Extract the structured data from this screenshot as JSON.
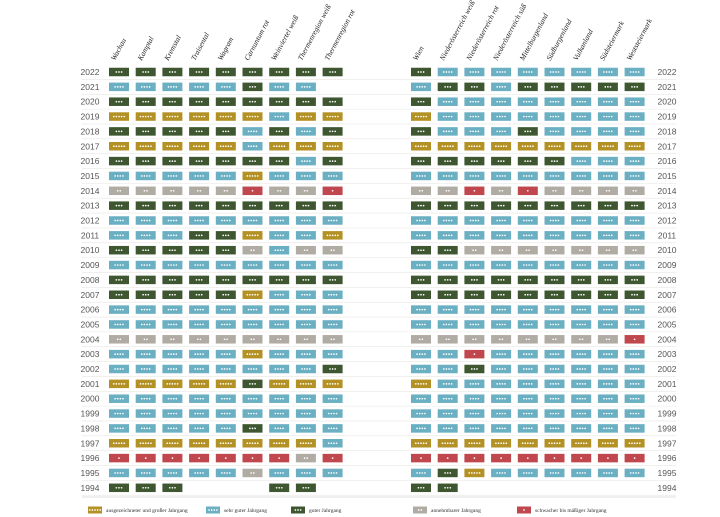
{
  "chart_data": {
    "type": "heatmap",
    "years": [
      2022,
      2021,
      2020,
      2019,
      2018,
      2017,
      2016,
      2015,
      2014,
      2013,
      2012,
      2011,
      2010,
      2009,
      2008,
      2007,
      2006,
      2005,
      2004,
      2003,
      2002,
      2001,
      2000,
      1999,
      1998,
      1997,
      1996,
      1995,
      1994
    ],
    "colors": {
      "5": "#b49125",
      "4": "#6aafc2",
      "3": "#3e5731",
      "2": "#b0aca4",
      "1": "#c0474e"
    },
    "legend": [
      {
        "level": 5,
        "label": "ausgezeichneter und großer Jahrgang"
      },
      {
        "level": 4,
        "label": "sehr guter Jahrgang"
      },
      {
        "level": 3,
        "label": "guter Jahrgang"
      },
      {
        "level": 2,
        "label": "annehmbarer Jahrgang"
      },
      {
        "level": 1,
        "label": "schwacher bis mäßiger Jahrgang"
      }
    ],
    "groups": [
      {
        "columns": [
          "Wachau",
          "Kamptal",
          "Kremstal",
          "Traisental",
          "Wagram",
          "Carnuntum rot",
          "Weinviertel weiß",
          "Thermenregion weiß",
          "Thermenregion rot"
        ],
        "rows": [
          [
            3,
            3,
            3,
            3,
            3,
            3,
            3,
            3,
            3
          ],
          [
            4,
            4,
            4,
            4,
            4,
            3,
            4,
            4,
            null
          ],
          [
            3,
            3,
            3,
            3,
            3,
            3,
            3,
            3,
            3
          ],
          [
            5,
            5,
            5,
            5,
            5,
            5,
            4,
            5,
            5
          ],
          [
            3,
            3,
            3,
            3,
            3,
            4,
            3,
            4,
            3
          ],
          [
            5,
            5,
            5,
            5,
            5,
            4,
            5,
            5,
            5
          ],
          [
            3,
            3,
            3,
            3,
            3,
            3,
            3,
            4,
            3
          ],
          [
            4,
            4,
            4,
            4,
            4,
            5,
            4,
            4,
            4
          ],
          [
            2,
            2,
            2,
            2,
            2,
            1,
            2,
            2,
            1
          ],
          [
            3,
            3,
            3,
            3,
            3,
            3,
            3,
            3,
            3
          ],
          [
            4,
            4,
            4,
            4,
            4,
            4,
            4,
            4,
            4
          ],
          [
            4,
            4,
            4,
            3,
            3,
            5,
            4,
            4,
            5
          ],
          [
            3,
            3,
            3,
            3,
            3,
            2,
            4,
            2,
            2
          ],
          [
            4,
            4,
            4,
            4,
            4,
            4,
            4,
            4,
            4
          ],
          [
            3,
            3,
            3,
            3,
            3,
            3,
            3,
            3,
            3
          ],
          [
            3,
            3,
            3,
            3,
            3,
            5,
            4,
            4,
            4
          ],
          [
            4,
            4,
            4,
            4,
            4,
            4,
            4,
            4,
            4
          ],
          [
            4,
            4,
            4,
            4,
            4,
            4,
            4,
            4,
            4
          ],
          [
            2,
            2,
            2,
            2,
            2,
            2,
            2,
            2,
            2
          ],
          [
            4,
            4,
            4,
            4,
            4,
            5,
            4,
            4,
            4
          ],
          [
            4,
            4,
            4,
            4,
            4,
            4,
            4,
            4,
            3
          ],
          [
            5,
            5,
            5,
            5,
            5,
            3,
            5,
            5,
            5
          ],
          [
            4,
            4,
            4,
            4,
            4,
            4,
            4,
            4,
            4
          ],
          [
            4,
            4,
            4,
            4,
            4,
            4,
            4,
            4,
            4
          ],
          [
            4,
            4,
            4,
            4,
            4,
            3,
            4,
            4,
            4
          ],
          [
            5,
            5,
            5,
            5,
            5,
            5,
            5,
            5,
            4
          ],
          [
            1,
            1,
            1,
            1,
            1,
            1,
            1,
            2,
            1
          ],
          [
            4,
            4,
            4,
            4,
            4,
            2,
            4,
            4,
            4
          ],
          [
            3,
            3,
            3,
            null,
            null,
            null,
            3,
            3,
            null
          ]
        ]
      },
      {
        "columns": [
          "Wien",
          "Niederösterreich weiß",
          "Niederösterreich rot",
          "Niederösterreich süß",
          "Mittelburgenland",
          "Südburgenland",
          "Vulkanland",
          "Südsteiermark",
          "Weststeiermark"
        ],
        "rows": [
          [
            3,
            4,
            4,
            4,
            4,
            4,
            4,
            4,
            4
          ],
          [
            4,
            3,
            3,
            4,
            3,
            3,
            3,
            3,
            3
          ],
          [
            3,
            4,
            4,
            4,
            4,
            4,
            4,
            4,
            4
          ],
          [
            5,
            4,
            4,
            4,
            4,
            4,
            4,
            4,
            4
          ],
          [
            3,
            4,
            4,
            4,
            3,
            4,
            4,
            4,
            4
          ],
          [
            5,
            5,
            5,
            5,
            5,
            5,
            5,
            5,
            5
          ],
          [
            3,
            3,
            3,
            3,
            3,
            3,
            4,
            4,
            4
          ],
          [
            4,
            4,
            4,
            4,
            4,
            4,
            4,
            4,
            4
          ],
          [
            2,
            2,
            1,
            2,
            1,
            2,
            2,
            2,
            2
          ],
          [
            3,
            3,
            3,
            3,
            3,
            3,
            3,
            3,
            3
          ],
          [
            4,
            4,
            4,
            4,
            4,
            4,
            4,
            4,
            4
          ],
          [
            4,
            4,
            4,
            4,
            4,
            4,
            4,
            4,
            4
          ],
          [
            3,
            3,
            2,
            2,
            2,
            2,
            2,
            2,
            2
          ],
          [
            4,
            4,
            4,
            4,
            4,
            4,
            4,
            4,
            4
          ],
          [
            3,
            3,
            3,
            3,
            3,
            3,
            3,
            3,
            3
          ],
          [
            3,
            3,
            3,
            3,
            3,
            3,
            3,
            3,
            3
          ],
          [
            4,
            4,
            4,
            4,
            4,
            4,
            4,
            4,
            4
          ],
          [
            4,
            4,
            4,
            4,
            4,
            4,
            4,
            4,
            4
          ],
          [
            2,
            2,
            2,
            2,
            2,
            2,
            2,
            2,
            1
          ],
          [
            4,
            4,
            1,
            4,
            4,
            4,
            4,
            4,
            4
          ],
          [
            4,
            4,
            3,
            4,
            4,
            4,
            4,
            4,
            4
          ],
          [
            5,
            4,
            4,
            4,
            4,
            4,
            4,
            4,
            4
          ],
          [
            4,
            4,
            4,
            4,
            4,
            4,
            4,
            4,
            4
          ],
          [
            4,
            4,
            4,
            4,
            4,
            4,
            4,
            4,
            4
          ],
          [
            4,
            4,
            4,
            4,
            4,
            4,
            4,
            4,
            4
          ],
          [
            5,
            5,
            5,
            5,
            5,
            5,
            5,
            5,
            5
          ],
          [
            1,
            1,
            1,
            1,
            1,
            1,
            1,
            1,
            1
          ],
          [
            4,
            3,
            5,
            4,
            4,
            4,
            4,
            4,
            4
          ],
          [
            3,
            3,
            null,
            null,
            null,
            null,
            null,
            null,
            null
          ]
        ]
      }
    ]
  }
}
